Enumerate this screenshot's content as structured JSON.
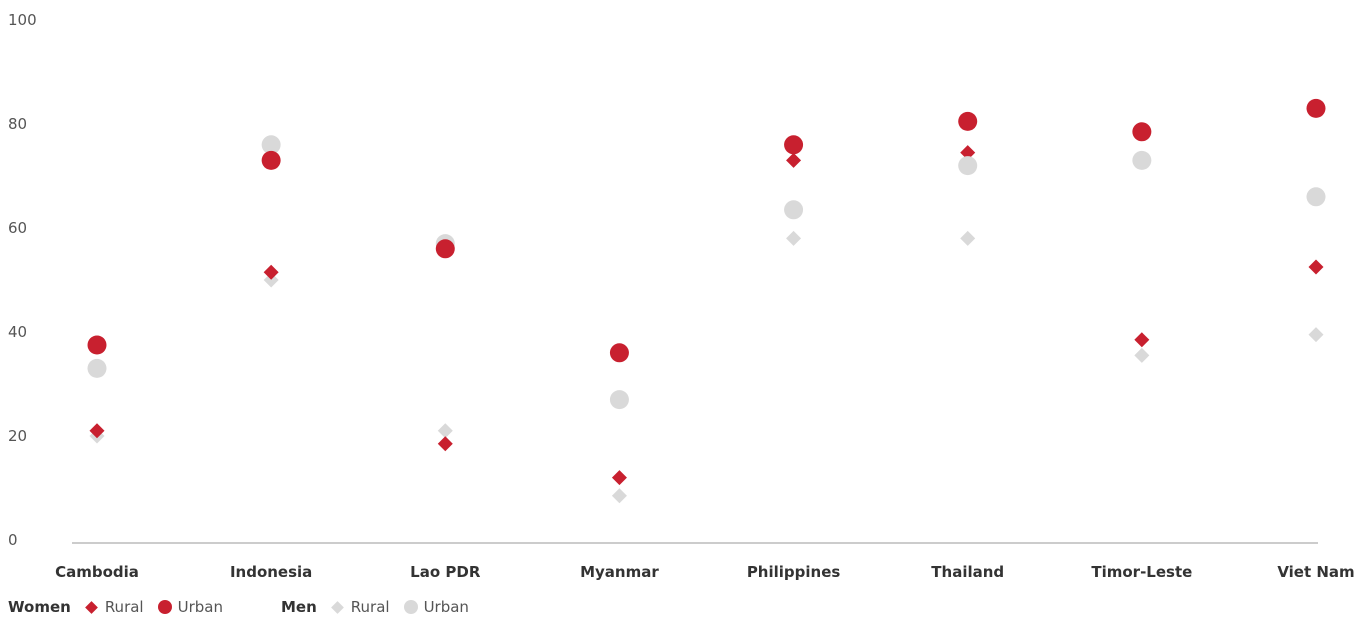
{
  "chart_data": {
    "type": "scatter",
    "categories": [
      "Cambodia",
      "Indonesia",
      "Lao PDR",
      "Myanmar",
      "Philippines",
      "Thailand",
      "Timor-Leste",
      "Viet Nam"
    ],
    "ylim": [
      0,
      100
    ],
    "yticks": [
      0,
      20,
      40,
      60,
      80,
      100
    ],
    "grid": false,
    "colors": {
      "women": "#c8202f",
      "men": "#d9d9d9",
      "axis": "#999999"
    },
    "series": [
      {
        "group": "Men",
        "name": "Rural",
        "marker": "diamond",
        "values": [
          20,
          50,
          21,
          8.5,
          58,
          58,
          35.5,
          39.5
        ]
      },
      {
        "group": "Women",
        "name": "Rural",
        "marker": "diamond",
        "values": [
          21,
          51.5,
          18.5,
          12,
          73,
          74.5,
          38.5,
          52.5
        ]
      },
      {
        "group": "Men",
        "name": "Urban",
        "marker": "circle",
        "values": [
          33,
          76,
          57,
          27,
          63.5,
          72,
          73,
          66
        ]
      },
      {
        "group": "Women",
        "name": "Urban",
        "marker": "circle",
        "values": [
          37.5,
          73,
          56,
          36,
          76,
          80.5,
          78.5,
          83
        ]
      }
    ]
  },
  "legend": {
    "women": {
      "label": "Women",
      "rural": "Rural",
      "urban": "Urban"
    },
    "men": {
      "label": "Men",
      "rural": "Rural",
      "urban": "Urban"
    }
  }
}
